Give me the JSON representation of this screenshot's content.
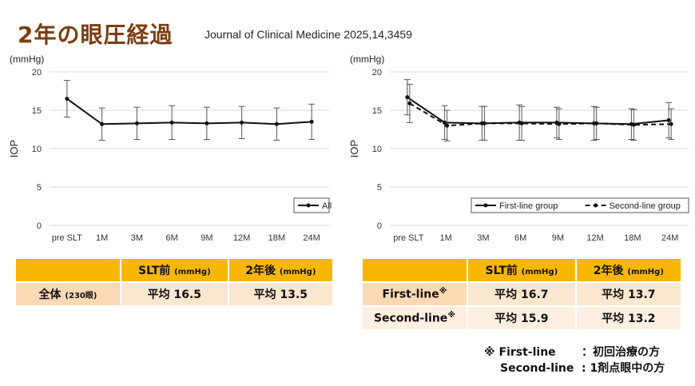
{
  "title": "2年の眼圧経過",
  "citation": "Journal of Clinical Medicine 2025,14,3459",
  "chart_data": [
    {
      "type": "line",
      "unit_label": "(mmHg)",
      "ylabel": "IOP",
      "ylim": [
        0,
        20
      ],
      "yticks": [
        0,
        5,
        10,
        15,
        20
      ],
      "categories": [
        "pre SLT",
        "1M",
        "3M",
        "6M",
        "9M",
        "12M",
        "18M",
        "24M"
      ],
      "series": [
        {
          "name": "All",
          "style": "solid",
          "values": [
            16.5,
            13.2,
            13.3,
            13.4,
            13.3,
            13.4,
            13.2,
            13.5
          ],
          "err": [
            2.4,
            2.1,
            2.1,
            2.2,
            2.1,
            2.1,
            2.1,
            2.3
          ]
        }
      ],
      "legend_position": "bottom-right"
    },
    {
      "type": "line",
      "unit_label": "(mmHg)",
      "ylabel": "IOP",
      "ylim": [
        0,
        20
      ],
      "yticks": [
        0,
        5,
        10,
        15,
        20
      ],
      "categories": [
        "pre SLT",
        "1M",
        "3M",
        "6M",
        "9M",
        "12M",
        "18M",
        "24M"
      ],
      "series": [
        {
          "name": "First-line group",
          "style": "solid",
          "values": [
            16.7,
            13.4,
            13.3,
            13.4,
            13.4,
            13.3,
            13.2,
            13.7
          ],
          "err": [
            2.3,
            2.2,
            2.2,
            2.3,
            2.0,
            2.2,
            2.0,
            2.3
          ]
        },
        {
          "name": "Second-line group",
          "style": "dashed",
          "values": [
            15.9,
            13.0,
            13.3,
            13.3,
            13.2,
            13.3,
            13.1,
            13.2
          ],
          "err": [
            2.5,
            2.0,
            2.2,
            2.2,
            2.0,
            2.1,
            2.0,
            2.0
          ]
        }
      ],
      "legend_position": "bottom-right"
    }
  ],
  "table_left": {
    "headers": [
      "",
      "SLT前",
      "2年後"
    ],
    "header_unit": "(mmHg)",
    "rows": [
      {
        "label": "全体",
        "label_note": "(230眼)",
        "before": "平均 16.5",
        "after": "平均 13.5"
      }
    ]
  },
  "table_right": {
    "headers": [
      "",
      "SLT前",
      "2年後"
    ],
    "header_unit": "(mmHg)",
    "rows": [
      {
        "label": "First-line",
        "mark": "※",
        "before": "平均 16.7",
        "after": "平均 13.7"
      },
      {
        "label": "Second-line",
        "mark": "※",
        "before": "平均 15.9",
        "after": "平均 13.2"
      }
    ]
  },
  "note": {
    "mark": "※",
    "items": [
      {
        "term": "First-line",
        "desc": "：初回治療の方"
      },
      {
        "term": "Second-line",
        "desc": ": 1剤点眼中の方"
      }
    ]
  }
}
